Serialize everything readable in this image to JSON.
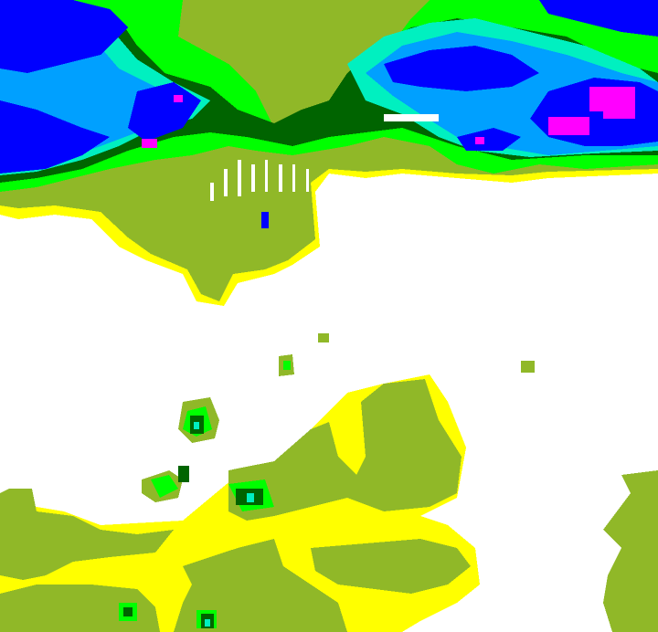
{
  "map": {
    "palette": {
      "background": "#ffffff",
      "level_yellow": "#ffff00",
      "level_olive": "#90b828",
      "level_green": "#00ff00",
      "level_dark_green": "#006400",
      "level_aqua": "#00f0c0",
      "level_light_blue": "#00a0ff",
      "level_blue": "#0000ff",
      "level_magenta": "#ff00ff"
    }
  }
}
